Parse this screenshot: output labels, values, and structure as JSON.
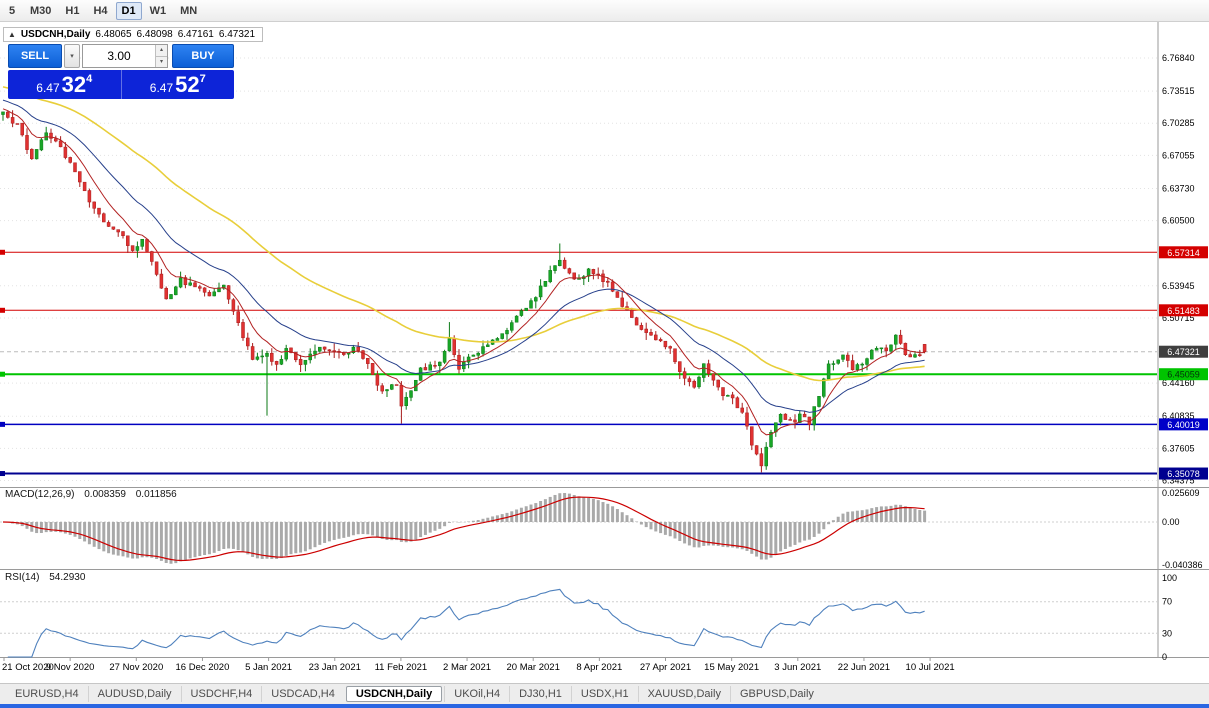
{
  "toolbar": {
    "timeframes": [
      "5",
      "M30",
      "H1",
      "H4",
      "D1",
      "W1",
      "MN"
    ],
    "active": "D1"
  },
  "icons": {
    "collapse": "▲",
    "chevron_down": "▾",
    "spinner_up": "▴",
    "spinner_down": "▾"
  },
  "chart_header": {
    "collapse_icon": "▲",
    "symbol": "USDCNH,Daily",
    "open": "6.48065",
    "high": "6.48098",
    "low": "6.47161",
    "close": "6.47321"
  },
  "trade_panel": {
    "sell_label": "SELL",
    "buy_label": "BUY",
    "volume": "3.00",
    "sell_price_prefix": "6.47",
    "sell_price_big": "32",
    "sell_price_sup": "4",
    "buy_price_prefix": "6.47",
    "buy_price_big": "52",
    "buy_price_sup": "7"
  },
  "price_axis": {
    "labels": [
      "6.76840",
      "6.73515",
      "6.70285",
      "6.67055",
      "6.63730",
      "6.60500",
      "6.53945",
      "6.50715",
      "6.44160",
      "6.40835",
      "6.37605",
      "6.34375"
    ],
    "badges": [
      {
        "value": "6.57314",
        "price": 6.57314,
        "bg": "#d40000",
        "fg": "#ffffff",
        "kind": "resistance-line"
      },
      {
        "value": "6.51483",
        "price": 6.51483,
        "bg": "#d40000",
        "fg": "#ffffff",
        "kind": "resistance-line"
      },
      {
        "value": "6.47321",
        "price": 6.47321,
        "bg": "#3f3f3f",
        "fg": "#ffffff",
        "kind": "current-price"
      },
      {
        "value": "6.45059",
        "price": 6.45059,
        "bg": "#00c400",
        "fg": "#003309",
        "kind": "support-line"
      },
      {
        "value": "6.40019",
        "price": 6.40019,
        "bg": "#0000c8",
        "fg": "#ffffff",
        "kind": "support-line"
      },
      {
        "value": "6.35078",
        "price": 6.35078,
        "bg": "#000090",
        "fg": "#ffffff",
        "kind": "support-line"
      }
    ]
  },
  "time_axis": {
    "dates": [
      "21 Oct 2020",
      "9 Nov 2020",
      "27 Nov 2020",
      "16 Dec 2020",
      "5 Jan 2021",
      "23 Jan 2021",
      "11 Feb 2021",
      "2 Mar 2021",
      "20 Mar 2021",
      "8 Apr 2021",
      "27 Apr 2021",
      "15 May 2021",
      "3 Jun 2021",
      "22 Jun 2021",
      "10 Jul 2021"
    ]
  },
  "macd": {
    "label": "MACD(12,26,9)",
    "value_main": "0.008359",
    "value_signal": "0.011856",
    "axis_top": "0.025609",
    "axis_zero": "0.00",
    "axis_bottom": "-0.040386"
  },
  "rsi": {
    "label": "RSI(14)",
    "value": "54.2930",
    "axis": [
      "100",
      "70",
      "30",
      "0"
    ],
    "levels": [
      70,
      30
    ]
  },
  "tabs": [
    {
      "label": "EURUSD,H4",
      "active": false
    },
    {
      "label": "AUDUSD,Daily",
      "active": false
    },
    {
      "label": "USDCHF,H4",
      "active": false
    },
    {
      "label": "USDCAD,H4",
      "active": false
    },
    {
      "label": "USDCNH,Daily",
      "active": true
    },
    {
      "label": "UKOil,H4",
      "active": false
    },
    {
      "label": "DJ30,H1",
      "active": false
    },
    {
      "label": "USDX,H1",
      "active": false
    },
    {
      "label": "XAUUSD,Daily",
      "active": false
    },
    {
      "label": "GBPUSD,Daily",
      "active": false
    }
  ],
  "colors": {
    "up_candle": "#18a627",
    "down_candle": "#e03131",
    "ma_fast": "#b22222",
    "ma_mid": "#27408b",
    "ma_slow": "#e8ce3a",
    "macd_hist": "#a9a9a9",
    "macd_signal": "#cc0000",
    "rsi_line": "#4f81bd",
    "trade_button": "#0f6be8",
    "quote_panel": "#0d24d8"
  },
  "chart_data": {
    "type": "candlestick",
    "symbol": "USDCNH",
    "timeframe": "Daily",
    "title": "USDCNH,Daily",
    "last_candle": {
      "open": 6.48065,
      "high": 6.48098,
      "low": 6.47161,
      "close": 6.47321
    },
    "y_axis_range": [
      6.335,
      6.805
    ],
    "x_range_dates": [
      "21 Oct 2020",
      "10 Jul 2021"
    ],
    "candle_count": 193,
    "grid": "dotted-horizontal",
    "legend_position": "none",
    "price_waypoints": [
      [
        0,
        6.712
      ],
      [
        3,
        6.7
      ],
      [
        6,
        6.668
      ],
      [
        9,
        6.695
      ],
      [
        12,
        6.678
      ],
      [
        15,
        6.655
      ],
      [
        18,
        6.625
      ],
      [
        21,
        6.603
      ],
      [
        24,
        6.594
      ],
      [
        27,
        6.576
      ],
      [
        29,
        6.585
      ],
      [
        32,
        6.552
      ],
      [
        34,
        6.527
      ],
      [
        37,
        6.545
      ],
      [
        41,
        6.536
      ],
      [
        43,
        6.531
      ],
      [
        46,
        6.541
      ],
      [
        49,
        6.502
      ],
      [
        52,
        6.465
      ],
      [
        55,
        6.472
      ],
      [
        57,
        6.458
      ],
      [
        59,
        6.476
      ],
      [
        62,
        6.462
      ],
      [
        66,
        6.479
      ],
      [
        69,
        6.474
      ],
      [
        71,
        6.469
      ],
      [
        73,
        6.48
      ],
      [
        76,
        6.461
      ],
      [
        79,
        6.432
      ],
      [
        82,
        6.441
      ],
      [
        83,
        6.418
      ],
      [
        85,
        6.433
      ],
      [
        87,
        6.455
      ],
      [
        91,
        6.461
      ],
      [
        93,
        6.488
      ],
      [
        95,
        6.457
      ],
      [
        97,
        6.469
      ],
      [
        100,
        6.476
      ],
      [
        103,
        6.489
      ],
      [
        106,
        6.5
      ],
      [
        108,
        6.514
      ],
      [
        111,
        6.53
      ],
      [
        114,
        6.554
      ],
      [
        116,
        6.565
      ],
      [
        118,
        6.551
      ],
      [
        120,
        6.546
      ],
      [
        122,
        6.556
      ],
      [
        125,
        6.546
      ],
      [
        127,
        6.536
      ],
      [
        129,
        6.52
      ],
      [
        132,
        6.501
      ],
      [
        135,
        6.49
      ],
      [
        139,
        6.476
      ],
      [
        141,
        6.452
      ],
      [
        144,
        6.436
      ],
      [
        146,
        6.459
      ],
      [
        148,
        6.446
      ],
      [
        150,
        6.431
      ],
      [
        152,
        6.426
      ],
      [
        154,
        6.411
      ],
      [
        156,
        6.381
      ],
      [
        158,
        6.36
      ],
      [
        160,
        6.39
      ],
      [
        162,
        6.409
      ],
      [
        165,
        6.401
      ],
      [
        166,
        6.411
      ],
      [
        168,
        6.402
      ],
      [
        170,
        6.43
      ],
      [
        172,
        6.459
      ],
      [
        175,
        6.47
      ],
      [
        177,
        6.456
      ],
      [
        180,
        6.466
      ],
      [
        182,
        6.479
      ],
      [
        184,
        6.476
      ],
      [
        186,
        6.489
      ],
      [
        188,
        6.471
      ],
      [
        190,
        6.469
      ],
      [
        192,
        6.4732
      ]
    ],
    "wick_marks": [
      {
        "i": 55,
        "low": 6.409
      },
      {
        "i": 83,
        "low": 6.401
      },
      {
        "i": 93,
        "high": 6.503
      },
      {
        "i": 116,
        "high": 6.582
      },
      {
        "i": 158,
        "low": 6.352
      }
    ],
    "horizontal_lines": [
      {
        "price": 6.57314,
        "color": "#d40000",
        "width": 1
      },
      {
        "price": 6.51483,
        "color": "#d40000",
        "width": 1
      },
      {
        "price": 6.45059,
        "color": "#00c400",
        "width": 2
      },
      {
        "price": 6.40019,
        "color": "#0000c0",
        "width": 1.5
      },
      {
        "price": 6.35078,
        "color": "#000090",
        "width": 2
      }
    ],
    "moving_averages": [
      {
        "type": "ema",
        "period": 8,
        "color": "#b22222"
      },
      {
        "type": "ema",
        "period": 21,
        "color": "#27408b"
      },
      {
        "type": "ema",
        "period": 55,
        "color": "#e8ce3a"
      }
    ],
    "indicators": [
      {
        "name": "MACD",
        "params": [
          12,
          26,
          9
        ],
        "current_main": 0.008359,
        "current_signal": 0.011856,
        "axis_max": 0.025609,
        "axis_min": -0.040386
      },
      {
        "name": "RSI",
        "params": [
          14
        ],
        "current": 54.293,
        "levels": [
          70,
          30
        ],
        "axis": [
          100,
          70,
          30,
          0
        ]
      }
    ]
  }
}
